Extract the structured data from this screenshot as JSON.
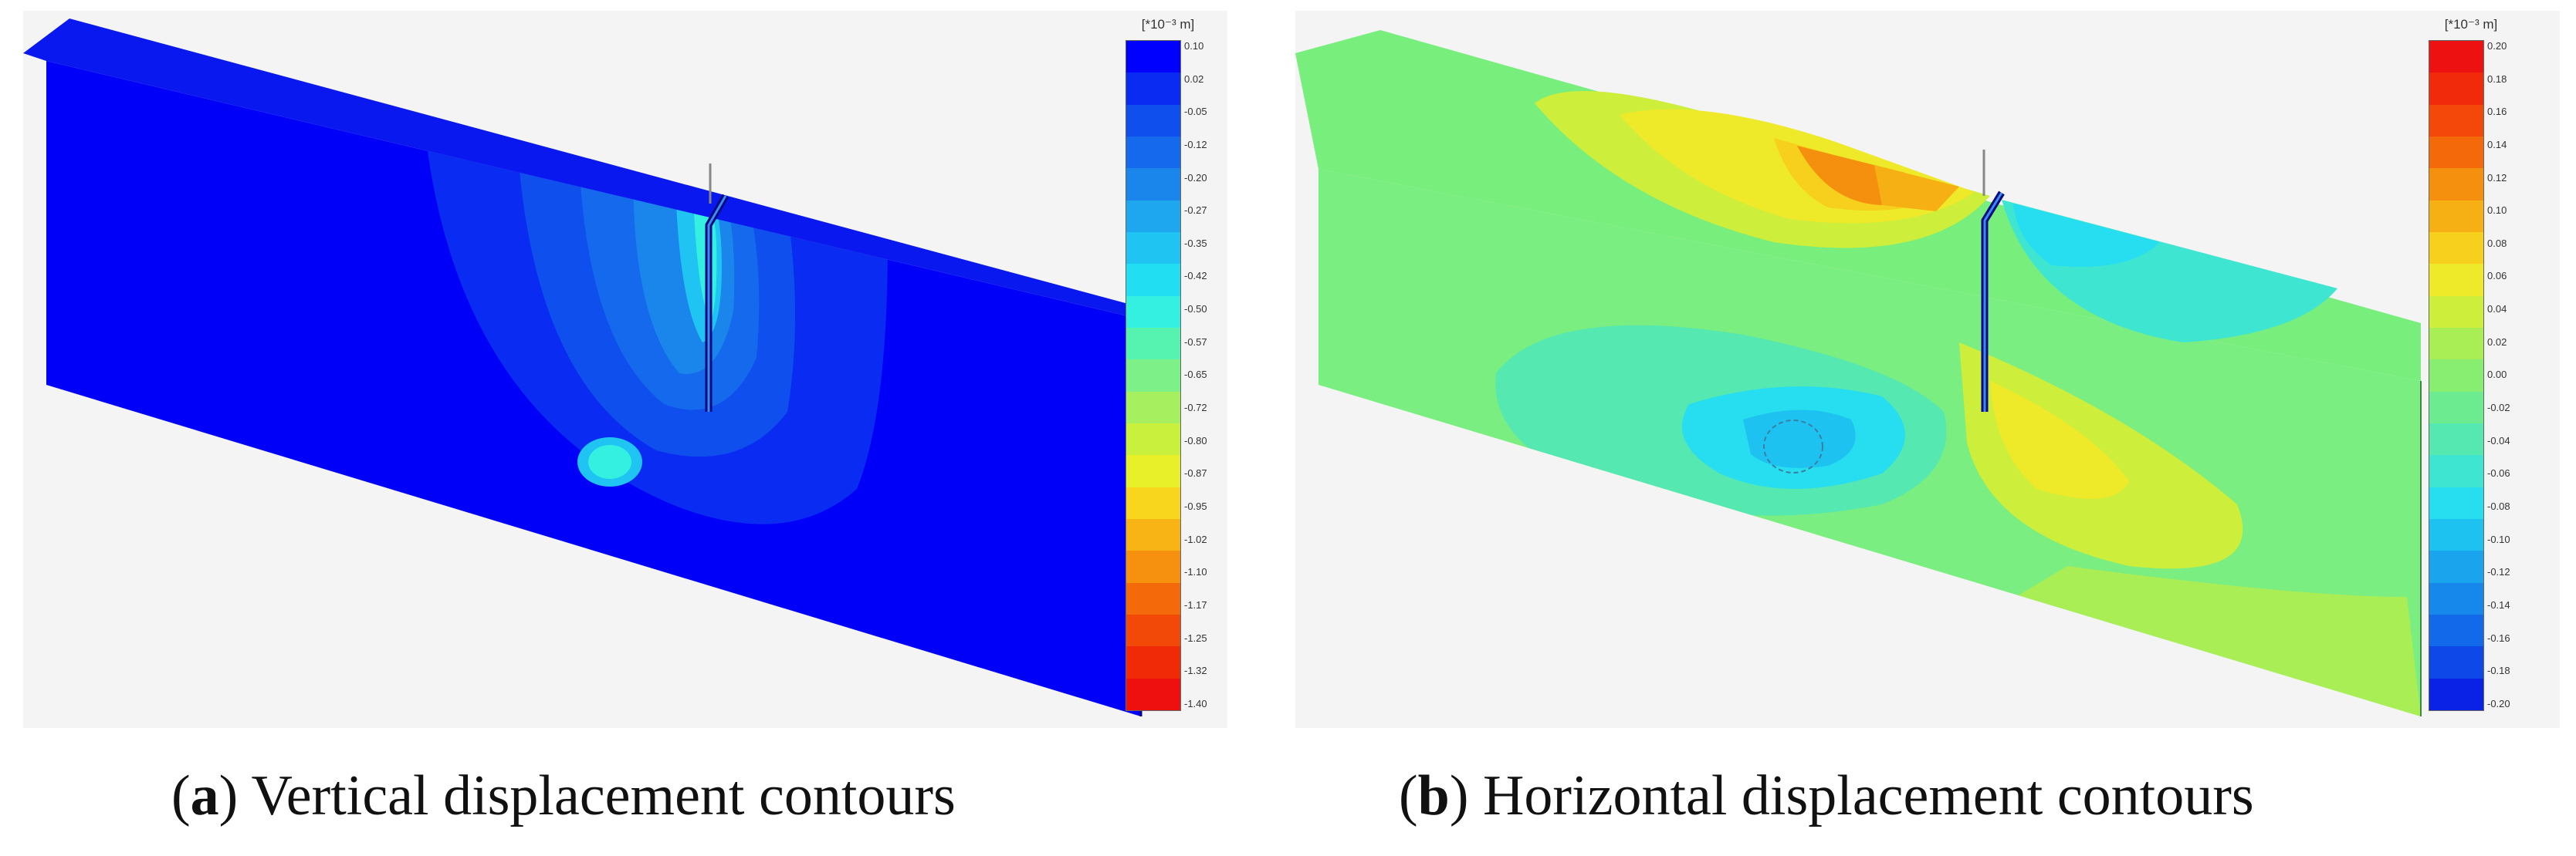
{
  "panel_a": {
    "unit": "[*10⁻³ m]",
    "scale_labels": [
      "0.10",
      "0.02",
      "-0.05",
      "-0.12",
      "-0.20",
      "-0.27",
      "-0.35",
      "-0.42",
      "-0.50",
      "-0.57",
      "-0.65",
      "-0.72",
      "-0.80",
      "-0.87",
      "-0.95",
      "-1.02",
      "-1.10",
      "-1.17",
      "-1.25",
      "-1.32",
      "-1.40"
    ],
    "scale_colors": [
      "#0000ff",
      "#0a2cf2",
      "#0f4fee",
      "#1469ec",
      "#1a86ec",
      "#1ea6ee",
      "#1fc4f2",
      "#22def2",
      "#33f0e0",
      "#55f2b0",
      "#7ef088",
      "#a6ef5e",
      "#c9f03c",
      "#e8f02a",
      "#f8d61e",
      "#f8b414",
      "#f6900f",
      "#f46a0b",
      "#f24808",
      "#f02a06",
      "#ee0f0f"
    ],
    "caption_letter": "a",
    "caption_text": " Vertical displacement contours"
  },
  "panel_b": {
    "unit": "[*10⁻³ m]",
    "scale_labels": [
      "0.20",
      "0.18",
      "0.16",
      "0.14",
      "0.12",
      "0.10",
      "0.08",
      "0.06",
      "0.04",
      "0.02",
      "0.00",
      "-0.02",
      "-0.04",
      "-0.06",
      "-0.08",
      "-0.10",
      "-0.12",
      "-0.14",
      "-0.16",
      "-0.18",
      "-0.20"
    ],
    "scale_colors": [
      "#ee1111",
      "#f22a0c",
      "#f4480a",
      "#f46a0a",
      "#f4900e",
      "#f6b014",
      "#f6d01c",
      "#eeea2a",
      "#cdee3a",
      "#a9ee55",
      "#88ee72",
      "#6ceb90",
      "#55e8b0",
      "#3ee6d2",
      "#26def0",
      "#1ec2f0",
      "#1aa4ee",
      "#1688ec",
      "#126aea",
      "#0e48e8",
      "#0a22e6"
    ],
    "caption_letter": "b",
    "caption_text": " Horizontal displacement contours"
  }
}
